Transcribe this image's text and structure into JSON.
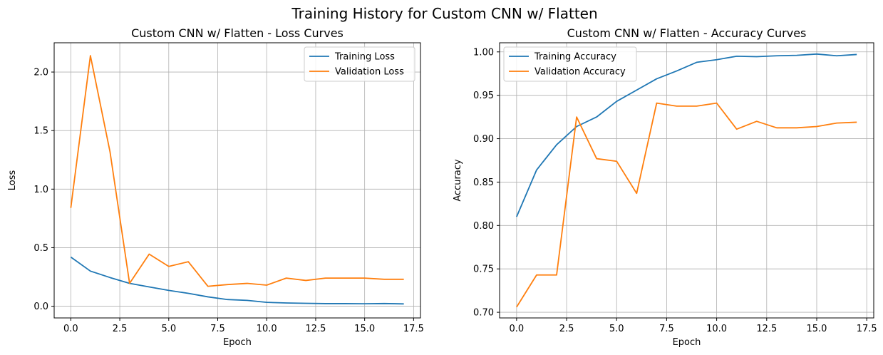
{
  "suptitle": "Training History for Custom CNN w/ Flatten",
  "colors": {
    "series1": "#1f77b4",
    "series2": "#ff7f0e"
  },
  "chart_data": [
    {
      "type": "line",
      "title": "Custom CNN w/ Flatten - Loss Curves",
      "xlabel": "Epoch",
      "ylabel": "Loss",
      "xlim": [
        -0.85,
        17.85
      ],
      "ylim": [
        -0.1,
        2.25
      ],
      "xticks": [
        0.0,
        2.5,
        5.0,
        7.5,
        10.0,
        12.5,
        15.0,
        17.5
      ],
      "xtick_labels": [
        "0.0",
        "2.5",
        "5.0",
        "7.5",
        "10.0",
        "12.5",
        "15.0",
        "17.5"
      ],
      "yticks": [
        0.0,
        0.5,
        1.0,
        1.5,
        2.0
      ],
      "ytick_labels": [
        "0.0",
        "0.5",
        "1.0",
        "1.5",
        "2.0"
      ],
      "grid": true,
      "legend_position": "upper right",
      "x": [
        0,
        1,
        2,
        3,
        4,
        5,
        6,
        7,
        8,
        9,
        10,
        11,
        12,
        13,
        14,
        15,
        16,
        17
      ],
      "series": [
        {
          "name": "Training Loss",
          "color": "#1f77b4",
          "values": [
            0.42,
            0.3,
            0.245,
            0.195,
            0.165,
            0.135,
            0.11,
            0.08,
            0.057,
            0.05,
            0.033,
            0.028,
            0.025,
            0.022,
            0.022,
            0.021,
            0.023,
            0.02
          ]
        },
        {
          "name": "Validation Loss",
          "color": "#ff7f0e",
          "values": [
            0.84,
            2.14,
            1.32,
            0.195,
            0.445,
            0.34,
            0.38,
            0.17,
            0.185,
            0.195,
            0.18,
            0.24,
            0.22,
            0.24,
            0.24,
            0.24,
            0.23,
            0.23
          ]
        }
      ]
    },
    {
      "type": "line",
      "title": "Custom CNN w/ Flatten - Accuracy Curves",
      "xlabel": "Epoch",
      "ylabel": "Accuracy",
      "xlim": [
        -0.85,
        17.85
      ],
      "ylim": [
        0.6935,
        1.0105
      ],
      "xticks": [
        0.0,
        2.5,
        5.0,
        7.5,
        10.0,
        12.5,
        15.0,
        17.5
      ],
      "xtick_labels": [
        "0.0",
        "2.5",
        "5.0",
        "7.5",
        "10.0",
        "12.5",
        "15.0",
        "17.5"
      ],
      "yticks": [
        0.7,
        0.75,
        0.8,
        0.85,
        0.9,
        0.95,
        1.0
      ],
      "ytick_labels": [
        "0.70",
        "0.75",
        "0.80",
        "0.85",
        "0.90",
        "0.95",
        "1.00"
      ],
      "grid": true,
      "legend_position": "upper left",
      "x": [
        0,
        1,
        2,
        3,
        4,
        5,
        6,
        7,
        8,
        9,
        10,
        11,
        12,
        13,
        14,
        15,
        16,
        17
      ],
      "series": [
        {
          "name": "Training Accuracy",
          "color": "#1f77b4",
          "values": [
            0.81,
            0.864,
            0.893,
            0.914,
            0.925,
            0.943,
            0.956,
            0.969,
            0.978,
            0.988,
            0.991,
            0.995,
            0.9945,
            0.9955,
            0.996,
            0.9975,
            0.9955,
            0.997
          ]
        },
        {
          "name": "Validation Accuracy",
          "color": "#ff7f0e",
          "values": [
            0.706,
            0.743,
            0.743,
            0.925,
            0.877,
            0.874,
            0.837,
            0.941,
            0.9375,
            0.9375,
            0.941,
            0.911,
            0.92,
            0.9125,
            0.9125,
            0.914,
            0.918,
            0.919
          ]
        }
      ]
    }
  ]
}
